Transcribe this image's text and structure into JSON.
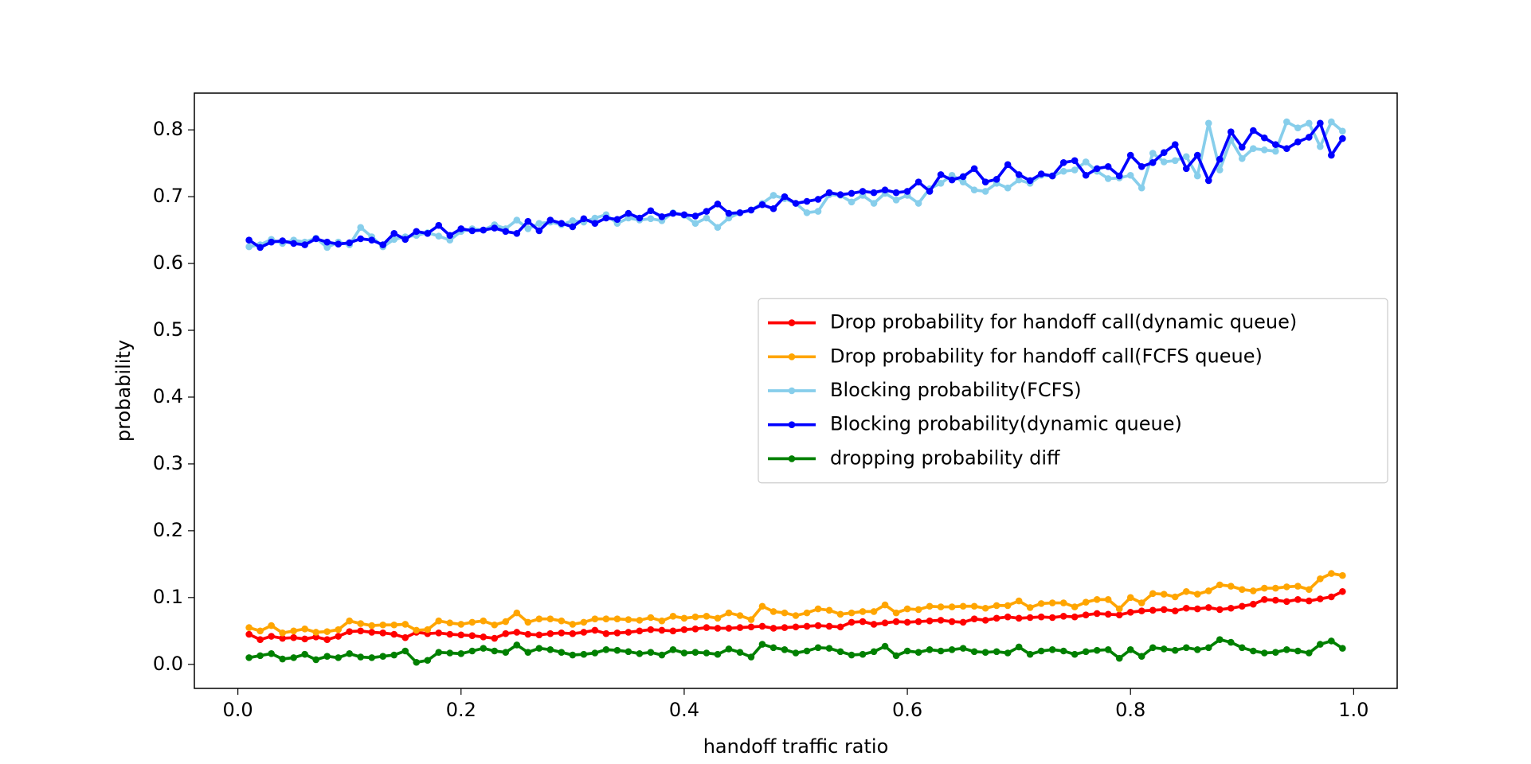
{
  "chart_data": {
    "type": "line",
    "xlabel": "handoff traffic ratio",
    "ylabel": "probability",
    "x": [
      0.01,
      0.02,
      0.03,
      0.04,
      0.05,
      0.06,
      0.07,
      0.08,
      0.09,
      0.1,
      0.11,
      0.12,
      0.13,
      0.14,
      0.15,
      0.16,
      0.17,
      0.18,
      0.19,
      0.2,
      0.21,
      0.22,
      0.23,
      0.24,
      0.25,
      0.26,
      0.27,
      0.28,
      0.29,
      0.3,
      0.31,
      0.32,
      0.33,
      0.34,
      0.35,
      0.36,
      0.37,
      0.38,
      0.39,
      0.4,
      0.41,
      0.42,
      0.43,
      0.44,
      0.45,
      0.46,
      0.47,
      0.48,
      0.49,
      0.5,
      0.51,
      0.52,
      0.53,
      0.54,
      0.55,
      0.56,
      0.57,
      0.58,
      0.59,
      0.6,
      0.61,
      0.62,
      0.63,
      0.64,
      0.65,
      0.66,
      0.67,
      0.68,
      0.69,
      0.7,
      0.71,
      0.72,
      0.73,
      0.74,
      0.75,
      0.76,
      0.77,
      0.78,
      0.79,
      0.8,
      0.81,
      0.82,
      0.83,
      0.84,
      0.85,
      0.86,
      0.87,
      0.88,
      0.89,
      0.9,
      0.91,
      0.92,
      0.93,
      0.94,
      0.95,
      0.96,
      0.97,
      0.98,
      0.99
    ],
    "series": [
      {
        "name": "Drop probability for handoff call(dynamic queue)",
        "color": "#ff0000",
        "values": [
          0.045,
          0.037,
          0.042,
          0.039,
          0.04,
          0.038,
          0.041,
          0.037,
          0.042,
          0.049,
          0.05,
          0.048,
          0.047,
          0.045,
          0.04,
          0.048,
          0.046,
          0.047,
          0.045,
          0.044,
          0.043,
          0.041,
          0.039,
          0.046,
          0.048,
          0.045,
          0.044,
          0.046,
          0.047,
          0.046,
          0.048,
          0.051,
          0.046,
          0.047,
          0.048,
          0.05,
          0.052,
          0.051,
          0.05,
          0.052,
          0.053,
          0.055,
          0.054,
          0.054,
          0.055,
          0.056,
          0.057,
          0.054,
          0.055,
          0.056,
          0.057,
          0.058,
          0.057,
          0.056,
          0.063,
          0.064,
          0.06,
          0.062,
          0.064,
          0.063,
          0.064,
          0.065,
          0.066,
          0.064,
          0.063,
          0.068,
          0.066,
          0.069,
          0.071,
          0.069,
          0.07,
          0.071,
          0.07,
          0.072,
          0.071,
          0.074,
          0.076,
          0.075,
          0.074,
          0.078,
          0.08,
          0.081,
          0.082,
          0.08,
          0.084,
          0.083,
          0.085,
          0.082,
          0.084,
          0.087,
          0.09,
          0.097,
          0.096,
          0.094,
          0.097,
          0.095,
          0.098,
          0.101,
          0.109
        ]
      },
      {
        "name": "Drop probability for handoff call(FCFS queue)",
        "color": "#ffa500",
        "values": [
          0.055,
          0.05,
          0.058,
          0.047,
          0.05,
          0.053,
          0.048,
          0.049,
          0.052,
          0.065,
          0.061,
          0.058,
          0.059,
          0.059,
          0.06,
          0.051,
          0.052,
          0.065,
          0.062,
          0.06,
          0.063,
          0.065,
          0.059,
          0.064,
          0.077,
          0.063,
          0.068,
          0.068,
          0.065,
          0.06,
          0.063,
          0.068,
          0.068,
          0.068,
          0.067,
          0.066,
          0.07,
          0.065,
          0.072,
          0.069,
          0.071,
          0.072,
          0.069,
          0.077,
          0.073,
          0.067,
          0.087,
          0.079,
          0.077,
          0.073,
          0.077,
          0.083,
          0.081,
          0.075,
          0.077,
          0.079,
          0.079,
          0.089,
          0.077,
          0.083,
          0.082,
          0.087,
          0.086,
          0.086,
          0.087,
          0.087,
          0.084,
          0.088,
          0.088,
          0.095,
          0.085,
          0.091,
          0.092,
          0.092,
          0.086,
          0.093,
          0.097,
          0.097,
          0.083,
          0.1,
          0.092,
          0.106,
          0.105,
          0.101,
          0.109,
          0.105,
          0.11,
          0.119,
          0.117,
          0.112,
          0.11,
          0.114,
          0.114,
          0.116,
          0.117,
          0.112,
          0.128,
          0.136,
          0.133
        ]
      },
      {
        "name": "Blocking probability(FCFS)",
        "color": "#87ceeb",
        "values": [
          0.625,
          0.628,
          0.636,
          0.63,
          0.635,
          0.632,
          0.638,
          0.624,
          0.632,
          0.628,
          0.654,
          0.64,
          0.625,
          0.636,
          0.64,
          0.642,
          0.646,
          0.641,
          0.635,
          0.648,
          0.652,
          0.65,
          0.658,
          0.652,
          0.665,
          0.652,
          0.66,
          0.662,
          0.658,
          0.664,
          0.662,
          0.668,
          0.673,
          0.66,
          0.668,
          0.665,
          0.667,
          0.664,
          0.676,
          0.672,
          0.66,
          0.668,
          0.654,
          0.668,
          0.676,
          0.68,
          0.69,
          0.702,
          0.697,
          0.69,
          0.676,
          0.678,
          0.703,
          0.702,
          0.692,
          0.702,
          0.69,
          0.705,
          0.695,
          0.702,
          0.69,
          0.712,
          0.72,
          0.732,
          0.722,
          0.71,
          0.708,
          0.72,
          0.713,
          0.725,
          0.72,
          0.732,
          0.731,
          0.738,
          0.74,
          0.752,
          0.738,
          0.727,
          0.728,
          0.732,
          0.713,
          0.765,
          0.752,
          0.754,
          0.76,
          0.731,
          0.81,
          0.74,
          0.785,
          0.757,
          0.772,
          0.77,
          0.768,
          0.812,
          0.803,
          0.81,
          0.775,
          0.812,
          0.798
        ]
      },
      {
        "name": "Blocking probability(dynamic queue)",
        "color": "#0000ff",
        "values": [
          0.635,
          0.624,
          0.632,
          0.634,
          0.63,
          0.628,
          0.637,
          0.632,
          0.629,
          0.631,
          0.637,
          0.635,
          0.628,
          0.645,
          0.636,
          0.648,
          0.645,
          0.657,
          0.642,
          0.652,
          0.649,
          0.65,
          0.653,
          0.648,
          0.645,
          0.663,
          0.649,
          0.665,
          0.66,
          0.655,
          0.667,
          0.66,
          0.668,
          0.666,
          0.675,
          0.668,
          0.679,
          0.67,
          0.675,
          0.673,
          0.671,
          0.678,
          0.689,
          0.675,
          0.676,
          0.68,
          0.688,
          0.682,
          0.7,
          0.69,
          0.693,
          0.696,
          0.706,
          0.703,
          0.705,
          0.708,
          0.706,
          0.71,
          0.706,
          0.708,
          0.722,
          0.708,
          0.733,
          0.725,
          0.73,
          0.742,
          0.722,
          0.726,
          0.748,
          0.733,
          0.724,
          0.734,
          0.731,
          0.751,
          0.754,
          0.732,
          0.742,
          0.745,
          0.731,
          0.762,
          0.745,
          0.751,
          0.766,
          0.778,
          0.742,
          0.762,
          0.724,
          0.756,
          0.797,
          0.774,
          0.799,
          0.788,
          0.778,
          0.772,
          0.782,
          0.789,
          0.81,
          0.762,
          0.787
        ]
      },
      {
        "name": "dropping probability diff",
        "color": "#008000",
        "values": [
          0.01,
          0.013,
          0.016,
          0.008,
          0.01,
          0.015,
          0.007,
          0.012,
          0.01,
          0.016,
          0.011,
          0.01,
          0.012,
          0.014,
          0.02,
          0.003,
          0.006,
          0.018,
          0.017,
          0.016,
          0.02,
          0.024,
          0.02,
          0.018,
          0.029,
          0.018,
          0.024,
          0.022,
          0.018,
          0.014,
          0.015,
          0.017,
          0.022,
          0.021,
          0.019,
          0.016,
          0.018,
          0.014,
          0.022,
          0.017,
          0.018,
          0.017,
          0.015,
          0.023,
          0.018,
          0.011,
          0.03,
          0.025,
          0.022,
          0.017,
          0.02,
          0.025,
          0.024,
          0.019,
          0.014,
          0.015,
          0.019,
          0.027,
          0.013,
          0.02,
          0.018,
          0.022,
          0.02,
          0.022,
          0.024,
          0.019,
          0.018,
          0.019,
          0.017,
          0.026,
          0.015,
          0.02,
          0.022,
          0.02,
          0.015,
          0.019,
          0.021,
          0.022,
          0.009,
          0.022,
          0.012,
          0.025,
          0.023,
          0.021,
          0.025,
          0.022,
          0.025,
          0.037,
          0.033,
          0.025,
          0.02,
          0.017,
          0.018,
          0.022,
          0.02,
          0.017,
          0.03,
          0.035,
          0.024
        ]
      }
    ],
    "xlim": [
      -0.039,
      1.039
    ],
    "xticks": [
      {
        "value": 0,
        "label": "0.0"
      },
      0.2,
      0.4,
      0.6,
      0.8,
      {
        "value": 1,
        "label": "1.0"
      }
    ],
    "ylim": [
      -0.036,
      0.855
    ],
    "yticks": [
      {
        "value": 0,
        "label": "0.0"
      },
      0.1,
      0.2,
      0.3,
      0.4,
      0.5,
      0.6,
      0.7,
      0.8
    ],
    "legend": "center right",
    "grid": false,
    "markers": true
  }
}
